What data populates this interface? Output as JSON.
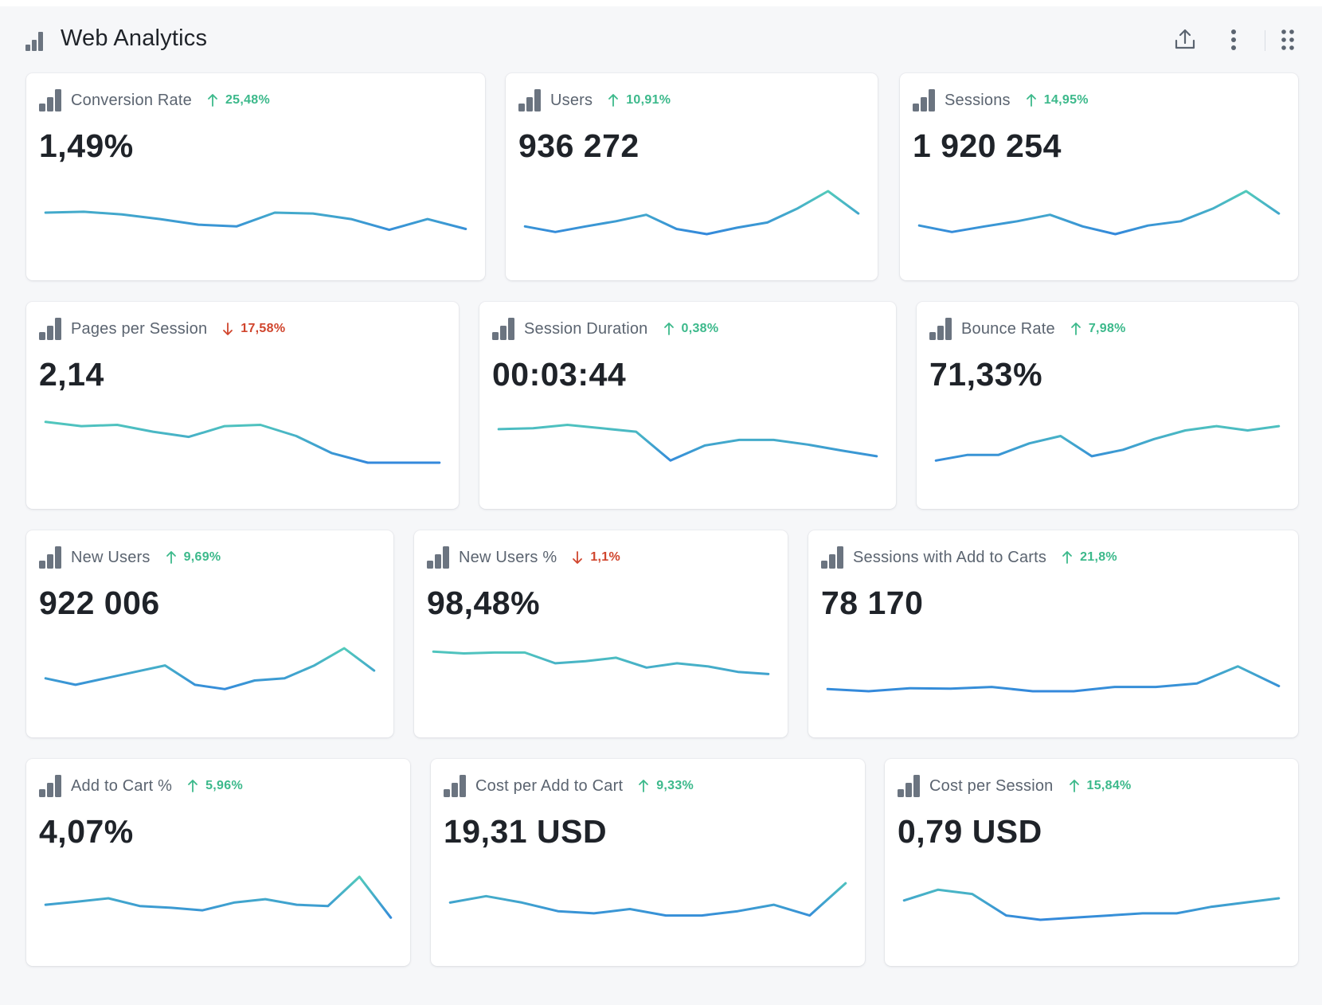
{
  "header": {
    "title": "Web Analytics",
    "actions": [
      "upload-icon",
      "more-vertical-icon",
      "grid-dots-icon"
    ]
  },
  "colors": {
    "up": "#3cb98b",
    "down": "#d0452d",
    "sparkline_start": "#5de0b0",
    "sparkline_end": "#2f7fe0",
    "metric_icon": "#6b7480"
  },
  "metrics": [
    {
      "title": "Conversion Rate",
      "change": "25,48%",
      "direction": "up",
      "value": "1,49%",
      "trend": [
        0.5,
        0.52,
        0.46,
        0.35,
        0.22,
        0.18,
        0.5,
        0.48,
        0.35,
        0.1,
        0.35,
        0.12
      ]
    },
    {
      "title": "Users",
      "change": "10,91%",
      "direction": "up",
      "value": "936 272",
      "trend": [
        0.18,
        0.05,
        0.18,
        0.3,
        0.45,
        0.12,
        0.0,
        0.15,
        0.27,
        0.6,
        1.0,
        0.48
      ]
    },
    {
      "title": "Sessions",
      "change": "14,95%",
      "direction": "up",
      "value": "1 920 254",
      "trend": [
        0.2,
        0.05,
        0.18,
        0.3,
        0.45,
        0.18,
        0.0,
        0.2,
        0.3,
        0.6,
        1.0,
        0.48
      ]
    },
    {
      "title": "Pages per Session",
      "change": "17,58%",
      "direction": "down",
      "value": "2,14",
      "trend": [
        0.95,
        0.85,
        0.88,
        0.72,
        0.6,
        0.85,
        0.88,
        0.62,
        0.22,
        0.0,
        0.0,
        0.0
      ]
    },
    {
      "title": "Session Duration",
      "change": "0,38%",
      "direction": "up",
      "value": "00:03:44",
      "trend": [
        0.78,
        0.8,
        0.88,
        0.8,
        0.72,
        0.05,
        0.4,
        0.53,
        0.53,
        0.42,
        0.28,
        0.15
      ]
    },
    {
      "title": "Bounce Rate",
      "change": "7,98%",
      "direction": "up",
      "value": "71,33%",
      "trend": [
        0.05,
        0.18,
        0.18,
        0.45,
        0.62,
        0.15,
        0.3,
        0.55,
        0.75,
        0.85,
        0.75,
        0.85
      ]
    },
    {
      "title": "New Users",
      "change": "9,69%",
      "direction": "up",
      "value": "922 006",
      "trend": [
        0.3,
        0.15,
        0.3,
        0.45,
        0.6,
        0.15,
        0.05,
        0.25,
        0.3,
        0.6,
        1.0,
        0.48
      ]
    },
    {
      "title": "New Users %",
      "change": "1,1%",
      "direction": "down",
      "value": "98,48%",
      "trend": [
        0.92,
        0.88,
        0.9,
        0.9,
        0.65,
        0.7,
        0.78,
        0.55,
        0.65,
        0.58,
        0.45,
        0.4
      ]
    },
    {
      "title": "Sessions with Add to Carts",
      "change": "21,8%",
      "direction": "up",
      "value": "78 170",
      "trend": [
        0.05,
        0.0,
        0.07,
        0.06,
        0.1,
        0.0,
        0.0,
        0.1,
        0.1,
        0.18,
        0.58,
        0.12
      ]
    },
    {
      "title": "Add to Cart %",
      "change": "5,96%",
      "direction": "up",
      "value": "4,07%",
      "trend": [
        0.35,
        0.42,
        0.5,
        0.32,
        0.28,
        0.22,
        0.4,
        0.48,
        0.35,
        0.32,
        1.0,
        0.05
      ]
    },
    {
      "title": "Cost per Add to Cart",
      "change": "9,33%",
      "direction": "up",
      "value": "19,31 USD",
      "trend": [
        0.4,
        0.55,
        0.4,
        0.2,
        0.15,
        0.25,
        0.1,
        0.1,
        0.2,
        0.35,
        0.1,
        0.85
      ]
    },
    {
      "title": "Cost per Session",
      "change": "15,84%",
      "direction": "up",
      "value": "0,79 USD",
      "trend": [
        0.45,
        0.7,
        0.6,
        0.1,
        0.0,
        0.05,
        0.1,
        0.15,
        0.15,
        0.3,
        0.4,
        0.5
      ]
    }
  ]
}
